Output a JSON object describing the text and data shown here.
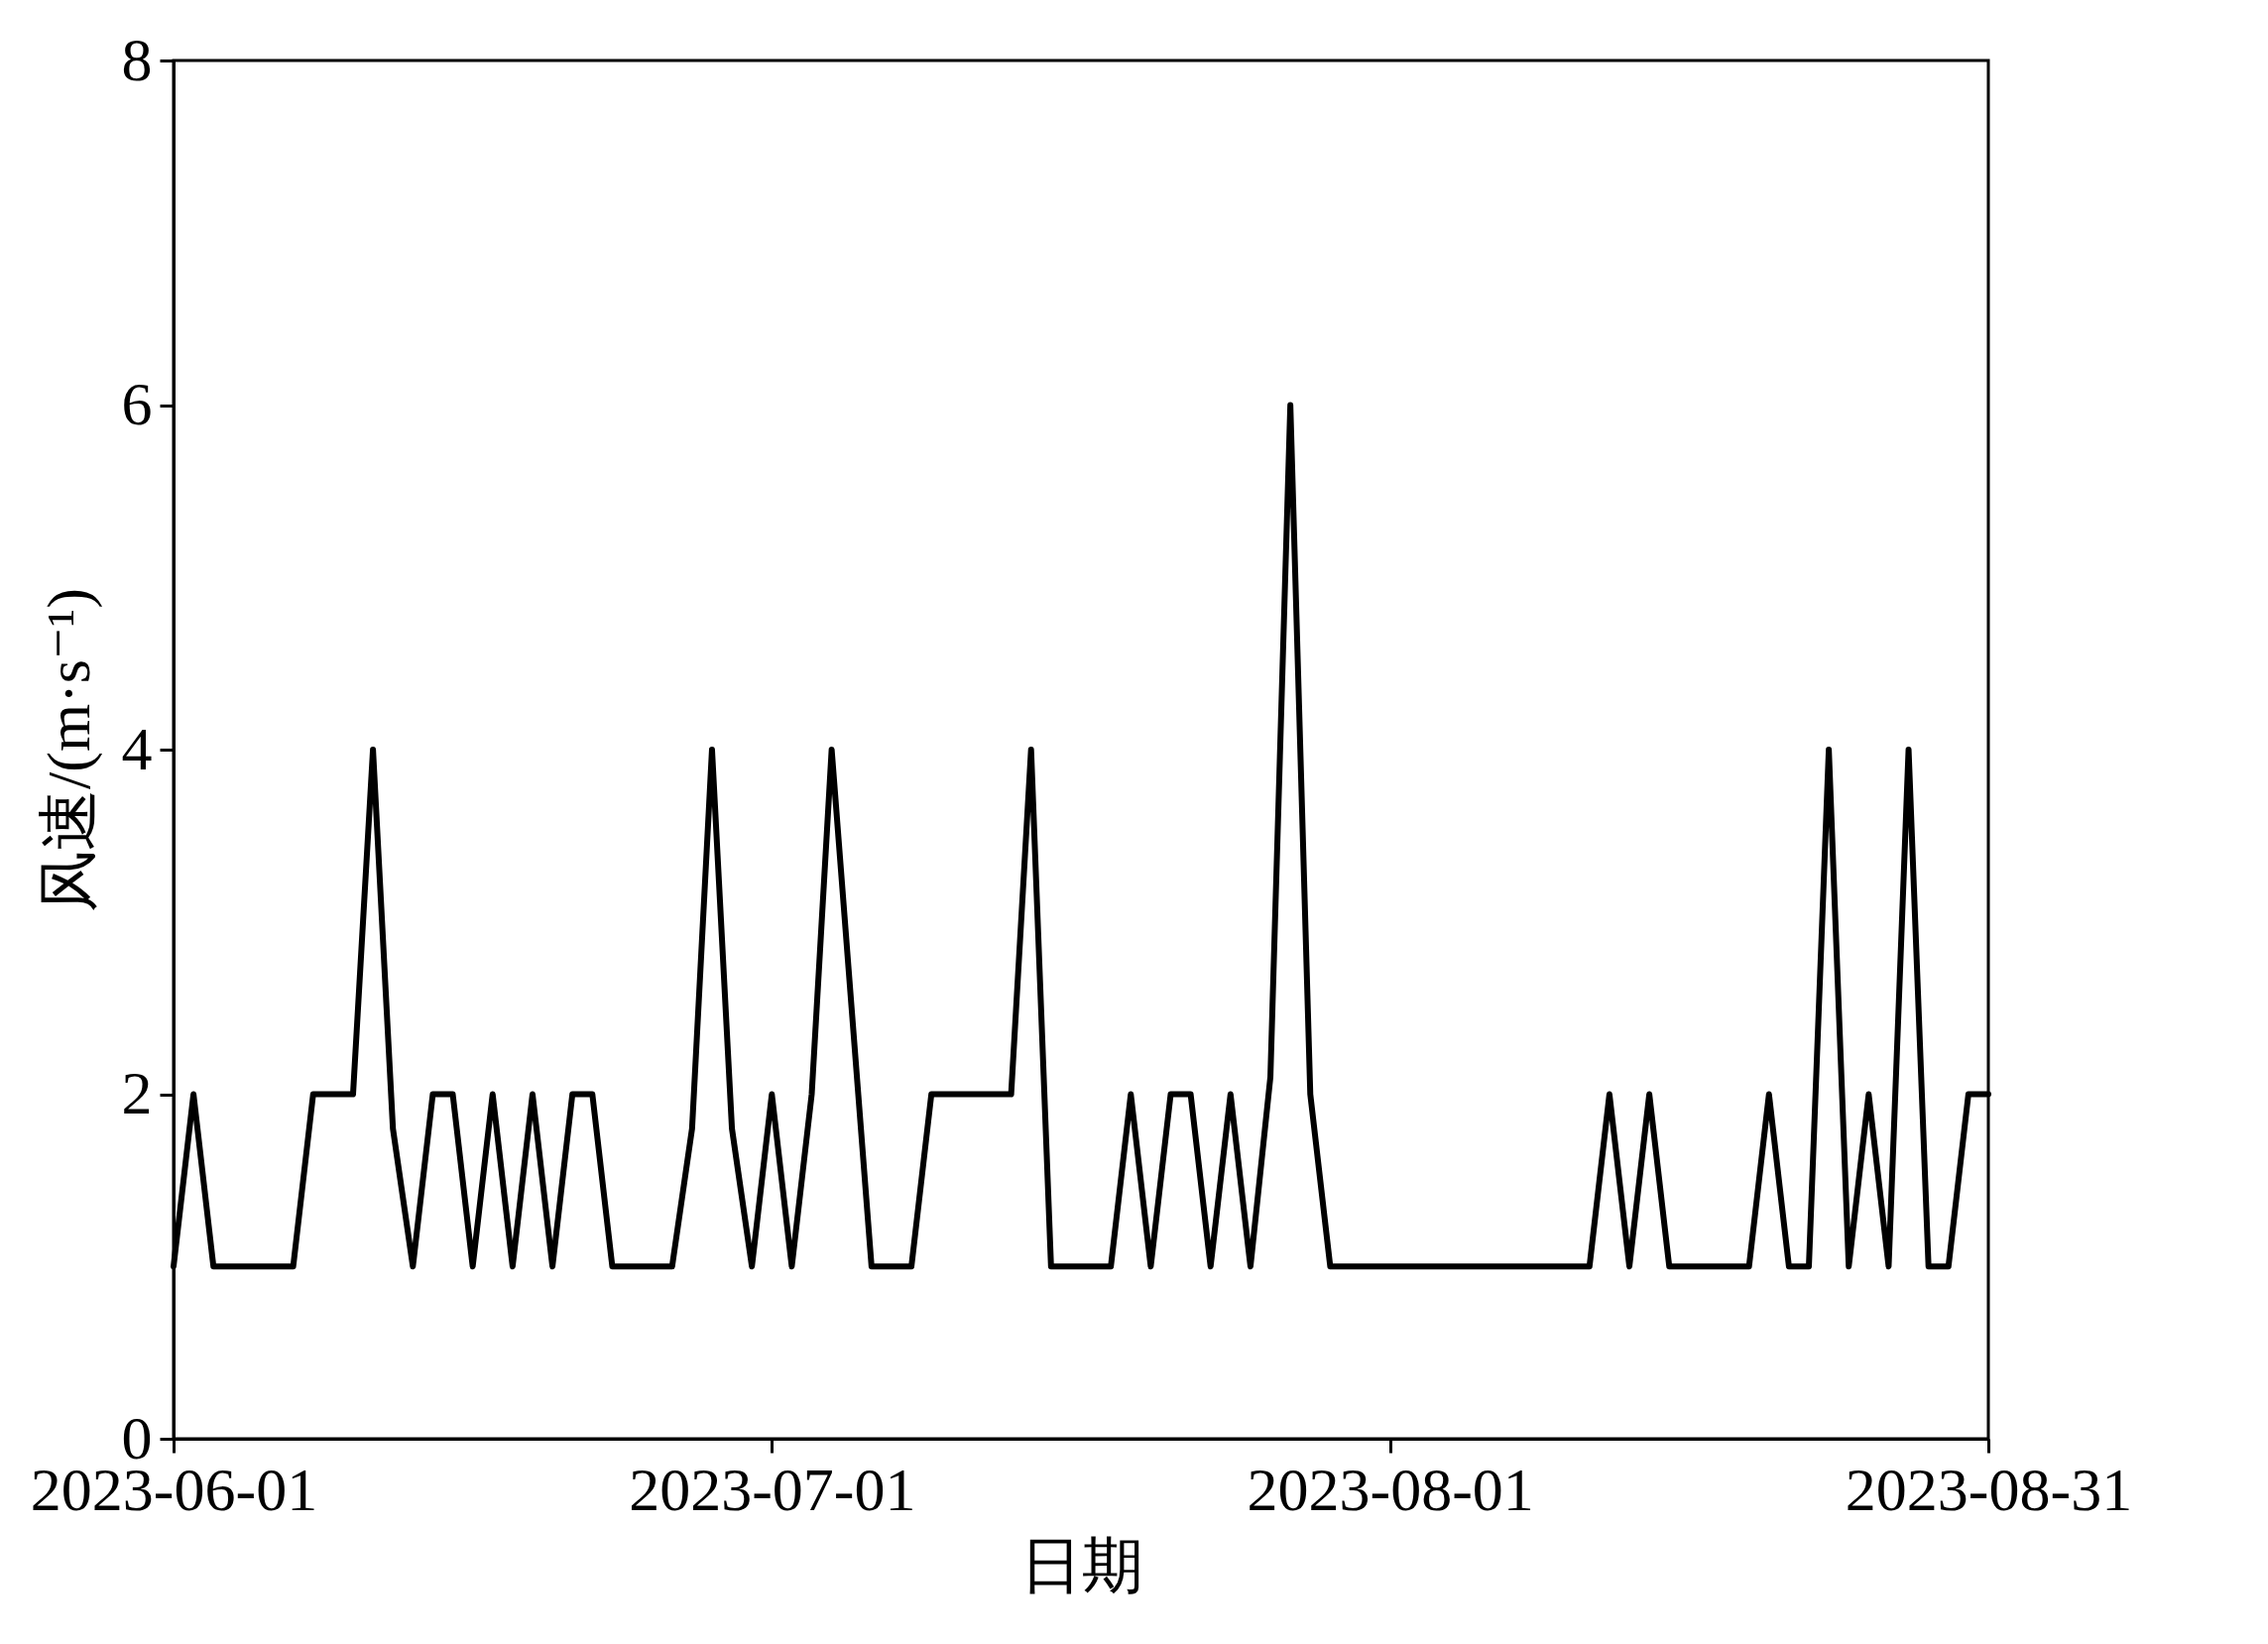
{
  "chart_data": {
    "type": "line",
    "xlabel": "日期",
    "ylabel": "风速/(m·s⁻¹)",
    "x": [
      "2023-06-01",
      "2023-06-02",
      "2023-06-03",
      "2023-06-04",
      "2023-06-05",
      "2023-06-06",
      "2023-06-07",
      "2023-06-08",
      "2023-06-09",
      "2023-06-10",
      "2023-06-11",
      "2023-06-12",
      "2023-06-13",
      "2023-06-14",
      "2023-06-15",
      "2023-06-16",
      "2023-06-17",
      "2023-06-18",
      "2023-06-19",
      "2023-06-20",
      "2023-06-21",
      "2023-06-22",
      "2023-06-23",
      "2023-06-24",
      "2023-06-25",
      "2023-06-26",
      "2023-06-27",
      "2023-06-28",
      "2023-06-29",
      "2023-06-30",
      "2023-07-01",
      "2023-07-02",
      "2023-07-03",
      "2023-07-04",
      "2023-07-05",
      "2023-07-06",
      "2023-07-07",
      "2023-07-08",
      "2023-07-09",
      "2023-07-10",
      "2023-07-11",
      "2023-07-12",
      "2023-07-13",
      "2023-07-14",
      "2023-07-15",
      "2023-07-16",
      "2023-07-17",
      "2023-07-18",
      "2023-07-19",
      "2023-07-20",
      "2023-07-21",
      "2023-07-22",
      "2023-07-23",
      "2023-07-24",
      "2023-07-25",
      "2023-07-26",
      "2023-07-27",
      "2023-07-28",
      "2023-07-29",
      "2023-07-30",
      "2023-07-31",
      "2023-08-01",
      "2023-08-02",
      "2023-08-03",
      "2023-08-04",
      "2023-08-05",
      "2023-08-06",
      "2023-08-07",
      "2023-08-08",
      "2023-08-09",
      "2023-08-10",
      "2023-08-11",
      "2023-08-12",
      "2023-08-13",
      "2023-08-14",
      "2023-08-15",
      "2023-08-16",
      "2023-08-17",
      "2023-08-18",
      "2023-08-19",
      "2023-08-20",
      "2023-08-21",
      "2023-08-22",
      "2023-08-23",
      "2023-08-24",
      "2023-08-25",
      "2023-08-26",
      "2023-08-27",
      "2023-08-28",
      "2023-08-29",
      "2023-08-30",
      "2023-08-31"
    ],
    "series": [
      {
        "color": "#000000",
        "values": [
          1,
          2,
          1,
          1,
          1,
          1,
          1,
          2,
          2,
          2,
          4,
          1.8,
          1,
          2,
          2,
          1,
          2,
          1,
          2,
          1,
          2,
          2,
          1,
          1,
          1,
          1,
          1.8,
          4,
          1.8,
          1,
          2,
          1,
          2,
          4,
          2.5,
          1,
          1,
          1,
          2,
          2,
          2,
          2,
          2,
          4,
          1,
          1,
          1,
          1,
          2,
          1,
          2,
          2,
          1,
          2,
          1,
          2.1,
          6,
          2,
          1,
          1,
          1,
          1,
          1,
          1,
          1,
          1,
          1,
          1,
          1,
          1,
          1,
          1,
          2,
          1,
          2,
          1,
          1,
          1,
          1,
          1,
          2,
          1,
          1,
          4,
          1,
          2,
          1,
          4,
          1,
          1,
          2,
          2
        ]
      }
    ],
    "xlim": [
      "2023-06-01",
      "2023-08-31"
    ],
    "xticks": [
      "2023-06-01",
      "2023-07-01",
      "2023-08-01",
      "2023-08-31"
    ],
    "ylim": [
      0,
      8
    ],
    "yticks": [
      0,
      2,
      4,
      6,
      8
    ],
    "grid": false,
    "marker": "none",
    "line_style": "solid"
  }
}
